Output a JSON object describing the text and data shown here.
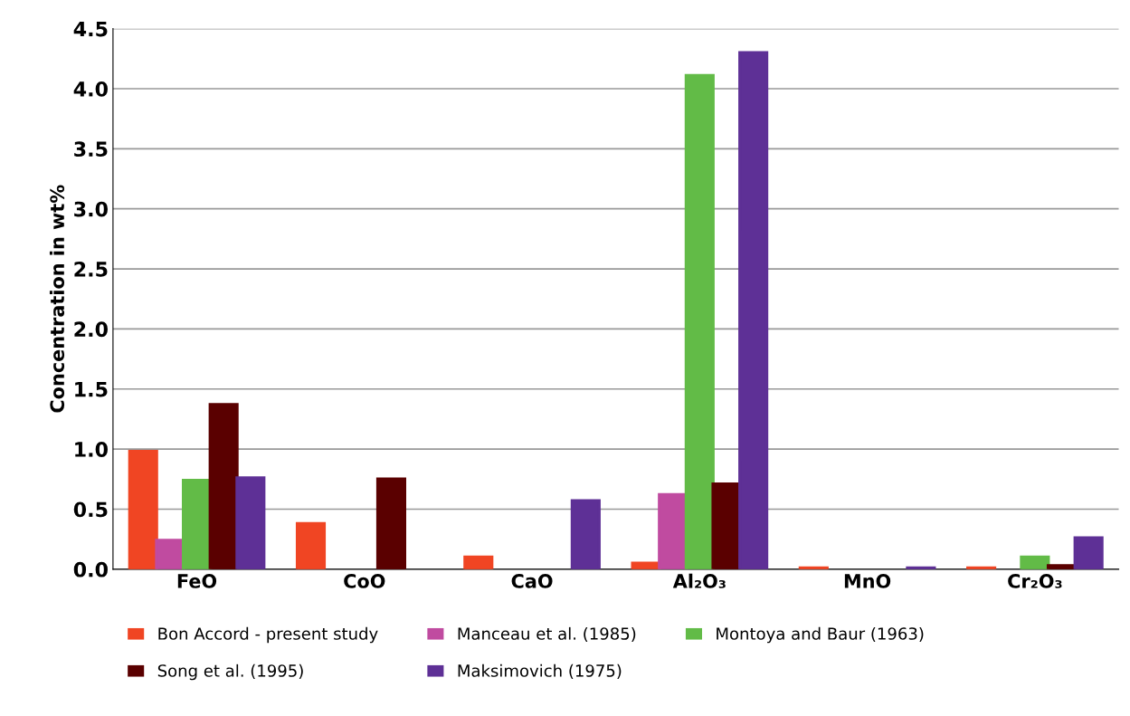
{
  "chart_data": {
    "type": "bar",
    "ylabel": "Concentration in wt%",
    "categories": [
      "FeO",
      "CoO",
      "CaO",
      "Al₂O₃",
      "MnO",
      "Cr₂O₃"
    ],
    "series": [
      {
        "name": "Bon Accord - present study",
        "color": "#f04523",
        "values": [
          0.98,
          0.38,
          0.1,
          0.05,
          0.01,
          0.01
        ]
      },
      {
        "name": "Manceau et al. (1985)",
        "color": "#c04ba0",
        "values": [
          0.24,
          null,
          null,
          0.62,
          null,
          null
        ]
      },
      {
        "name": "Montoya and Baur (1963)",
        "color": "#62bb47",
        "values": [
          0.74,
          null,
          null,
          4.11,
          null,
          0.1
        ]
      },
      {
        "name": "Song et al. (1995)",
        "color": "#5a0000",
        "values": [
          1.37,
          0.75,
          null,
          0.71,
          null,
          0.03
        ]
      },
      {
        "name": "Maksimovich (1975)",
        "color": "#5e3096",
        "values": [
          0.76,
          null,
          0.57,
          4.3,
          0.01,
          0.26
        ]
      }
    ],
    "ylim": [
      0,
      4.5
    ],
    "yticks": [
      {
        "value": 0,
        "label": "0.0"
      },
      {
        "value": 0.5,
        "label": "0.5"
      },
      {
        "value": 1,
        "label": "1.0"
      },
      {
        "value": 1.5,
        "label": "1.5"
      },
      {
        "value": 2,
        "label": "2.0"
      },
      {
        "value": 2.5,
        "label": "2.5"
      },
      {
        "value": 3,
        "label": "3.0"
      },
      {
        "value": 3.5,
        "label": "3.5"
      },
      {
        "value": 4,
        "label": "4.0"
      },
      {
        "value": 4.5,
        "label": "4.5"
      }
    ],
    "grid": "y",
    "legend": "bottom"
  }
}
